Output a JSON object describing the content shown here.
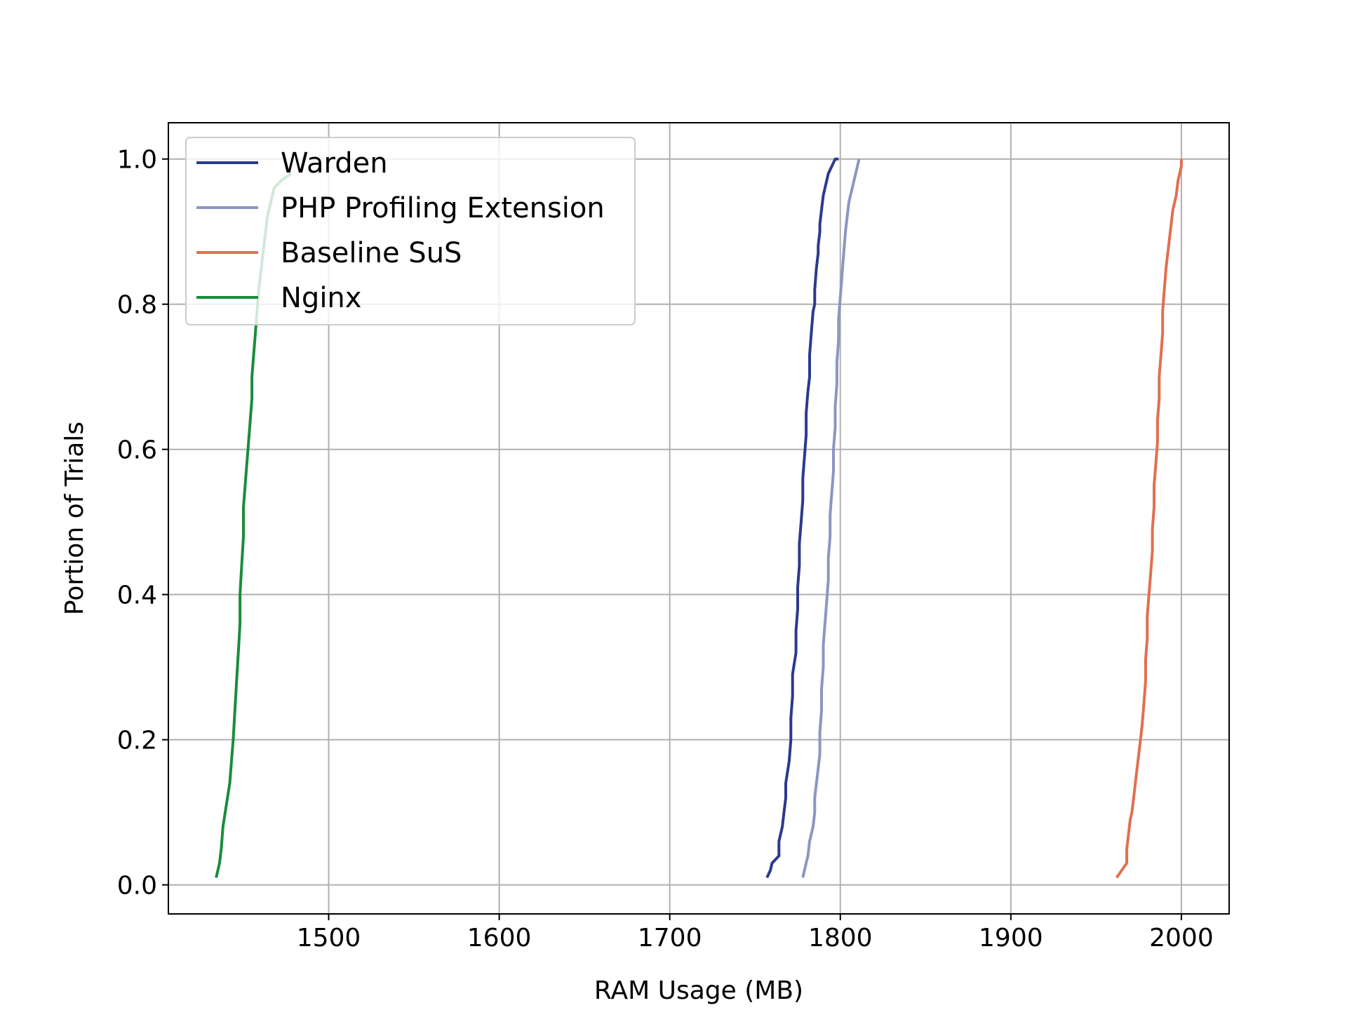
{
  "chart_data": {
    "type": "line",
    "title": "",
    "xlabel": "RAM Usage (MB)",
    "ylabel": "Portion of Trials",
    "xlim": [
      1406,
      2028
    ],
    "ylim": [
      -0.04,
      1.05
    ],
    "xticks": [
      1500,
      1600,
      1700,
      1800,
      1900,
      2000
    ],
    "yticks": [
      0.0,
      0.2,
      0.4,
      0.6,
      0.8,
      1.0
    ],
    "xtick_labels": [
      "1500",
      "1600",
      "1700",
      "1800",
      "1900",
      "2000"
    ],
    "ytick_labels": [
      "0.0",
      "0.2",
      "0.4",
      "0.6",
      "0.8",
      "1.0"
    ],
    "grid": true,
    "legend_position": "upper-left",
    "series": [
      {
        "name": "Warden",
        "color": "#2b3a8c",
        "x": [
          1757,
          1759,
          1760,
          1764,
          1764,
          1766,
          1767,
          1768,
          1768,
          1770,
          1771,
          1771,
          1772,
          1772,
          1774,
          1774,
          1775,
          1775,
          1776,
          1776,
          1777,
          1778,
          1778,
          1779,
          1780,
          1780,
          1781,
          1782,
          1782,
          1783,
          1784,
          1785,
          1785,
          1786,
          1787,
          1787,
          1788,
          1788,
          1789,
          1790,
          1791,
          1792,
          1793,
          1795,
          1797,
          1799
        ],
        "y": [
          0.01,
          0.02,
          0.03,
          0.04,
          0.06,
          0.08,
          0.1,
          0.12,
          0.14,
          0.17,
          0.2,
          0.23,
          0.26,
          0.29,
          0.32,
          0.35,
          0.38,
          0.41,
          0.44,
          0.47,
          0.5,
          0.53,
          0.56,
          0.59,
          0.62,
          0.65,
          0.68,
          0.7,
          0.73,
          0.76,
          0.79,
          0.8,
          0.82,
          0.85,
          0.87,
          0.88,
          0.9,
          0.91,
          0.93,
          0.95,
          0.96,
          0.97,
          0.98,
          0.99,
          1.0,
          1.0
        ]
      },
      {
        "name": "PHP Profiling Extension",
        "color": "#8b96c2",
        "x": [
          1778,
          1779,
          1780,
          1781,
          1782,
          1783,
          1784,
          1785,
          1785,
          1786,
          1787,
          1788,
          1788,
          1789,
          1789,
          1790,
          1790,
          1791,
          1792,
          1793,
          1793,
          1794,
          1794,
          1795,
          1796,
          1796,
          1797,
          1797,
          1798,
          1798,
          1799,
          1799,
          1800,
          1801,
          1802,
          1803,
          1804,
          1805,
          1806,
          1807,
          1808,
          1810,
          1811
        ],
        "y": [
          0.01,
          0.02,
          0.03,
          0.04,
          0.06,
          0.07,
          0.08,
          0.1,
          0.12,
          0.14,
          0.16,
          0.18,
          0.21,
          0.24,
          0.27,
          0.3,
          0.33,
          0.36,
          0.39,
          0.42,
          0.45,
          0.48,
          0.51,
          0.54,
          0.57,
          0.6,
          0.63,
          0.66,
          0.69,
          0.72,
          0.75,
          0.78,
          0.81,
          0.84,
          0.87,
          0.9,
          0.92,
          0.94,
          0.95,
          0.96,
          0.97,
          0.99,
          1.0
        ]
      },
      {
        "name": "Baseline SuS",
        "color": "#e07050",
        "x": [
          1962,
          1965,
          1968,
          1968,
          1969,
          1970,
          1971,
          1972,
          1973,
          1974,
          1975,
          1976,
          1977,
          1978,
          1979,
          1979,
          1980,
          1980,
          1981,
          1982,
          1983,
          1983,
          1984,
          1984,
          1985,
          1986,
          1986,
          1987,
          1987,
          1988,
          1989,
          1989,
          1990,
          1991,
          1992,
          1993,
          1994,
          1995,
          1996,
          1997,
          1998,
          1999,
          2000,
          2000
        ],
        "y": [
          0.01,
          0.02,
          0.03,
          0.05,
          0.07,
          0.09,
          0.1,
          0.12,
          0.14,
          0.16,
          0.18,
          0.2,
          0.22,
          0.25,
          0.28,
          0.31,
          0.34,
          0.37,
          0.4,
          0.43,
          0.46,
          0.49,
          0.52,
          0.55,
          0.58,
          0.61,
          0.64,
          0.67,
          0.7,
          0.73,
          0.76,
          0.79,
          0.82,
          0.85,
          0.87,
          0.89,
          0.91,
          0.93,
          0.94,
          0.95,
          0.97,
          0.98,
          0.99,
          1.0
        ]
      },
      {
        "name": "Nginx",
        "color": "#1a8c3c",
        "x": [
          1434,
          1436,
          1437,
          1438,
          1440,
          1442,
          1443,
          1444,
          1445,
          1446,
          1447,
          1448,
          1448,
          1449,
          1450,
          1450,
          1451,
          1452,
          1453,
          1454,
          1455,
          1455,
          1456,
          1457,
          1458,
          1459,
          1460,
          1461,
          1462,
          1463,
          1464,
          1466,
          1468,
          1472,
          1478
        ],
        "y": [
          0.01,
          0.03,
          0.05,
          0.08,
          0.11,
          0.14,
          0.17,
          0.2,
          0.24,
          0.28,
          0.32,
          0.36,
          0.4,
          0.44,
          0.48,
          0.52,
          0.55,
          0.58,
          0.61,
          0.64,
          0.67,
          0.7,
          0.73,
          0.76,
          0.79,
          0.82,
          0.84,
          0.86,
          0.88,
          0.9,
          0.92,
          0.94,
          0.96,
          0.97,
          0.98
        ]
      }
    ]
  }
}
